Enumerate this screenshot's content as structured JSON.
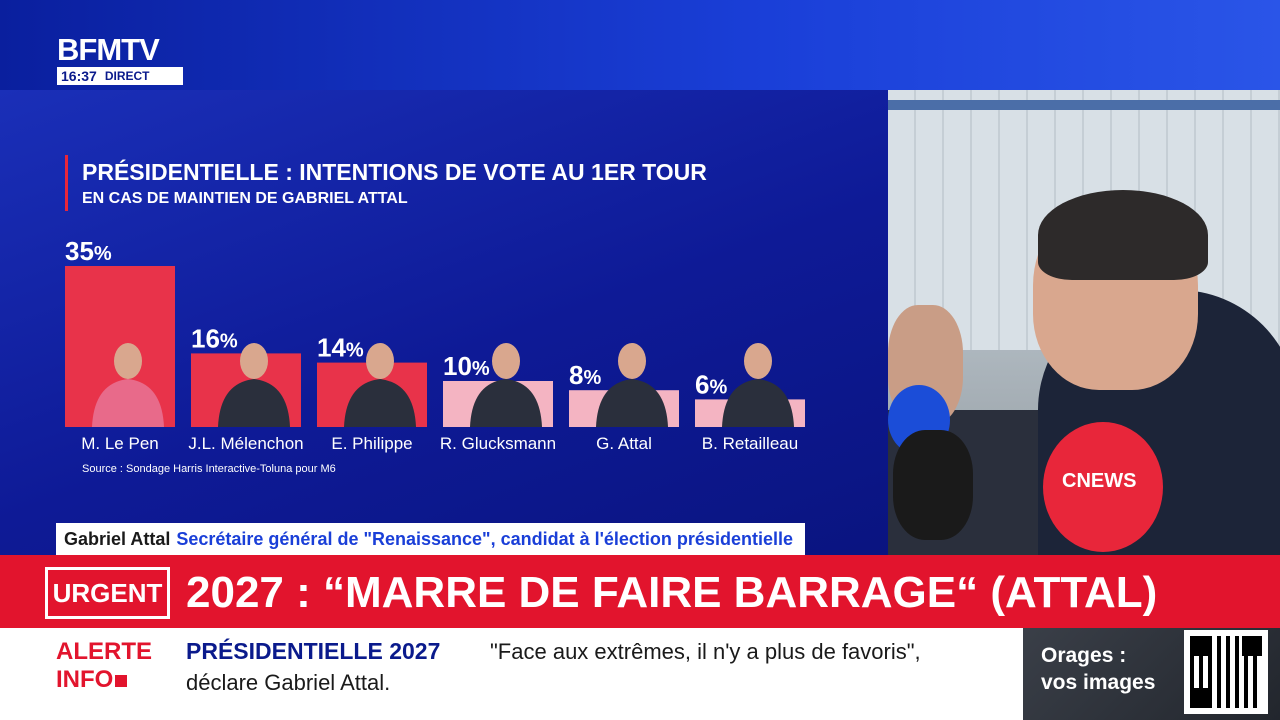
{
  "channel": {
    "logo": "BFMTV",
    "time": "16:37",
    "live": "DIRECT"
  },
  "chart_data": {
    "type": "bar",
    "title": "PRÉSIDENTIELLE : INTENTIONS DE VOTE AU 1ER TOUR",
    "subtitle": "EN CAS DE MAINTIEN DE GABRIEL ATTAL",
    "categories": [
      "M. Le Pen",
      "J.L. Mélenchon",
      "E. Philippe",
      "R. Glucksmann",
      "G. Attal",
      "B. Retailleau"
    ],
    "values": [
      35,
      16,
      14,
      10,
      8,
      6
    ],
    "value_suffix": "%",
    "bar_colors": [
      "#e8334a",
      "#e8334a",
      "#e8334a",
      "#f4b4c2",
      "#f4b4c2",
      "#f4b4c2"
    ],
    "ylim": [
      0,
      35
    ],
    "grid": false,
    "legend": "none",
    "source": "Source : Sondage Harris Interactive-Toluna pour M6"
  },
  "lower_third": {
    "name": "Gabriel Attal",
    "role": "Secrétaire général de \"Renaissance\", candidat à l'élection présidentielle"
  },
  "urgent": {
    "badge": "URGENT",
    "headline": "2027 : “MARRE DE FAIRE BARRAGE“ (ATTAL)"
  },
  "alert": {
    "tag_line1": "ALERTE",
    "tag_line2": "INFO",
    "topic": "PRÉSIDENTIELLE 2027",
    "text_line1": "\"Face aux extrêmes, il n'y a plus de favoris\",",
    "text_line2": "déclare Gabriel Attal."
  },
  "promo": {
    "text_line1": "Orages :",
    "text_line2": "vos images"
  },
  "video": {
    "mic_label": "CNEWS"
  },
  "colors": {
    "bfm_blue": "#0a1a8c",
    "urgent_red": "#e2142d",
    "bar_red": "#e8334a",
    "bar_pink": "#f4b4c2"
  }
}
